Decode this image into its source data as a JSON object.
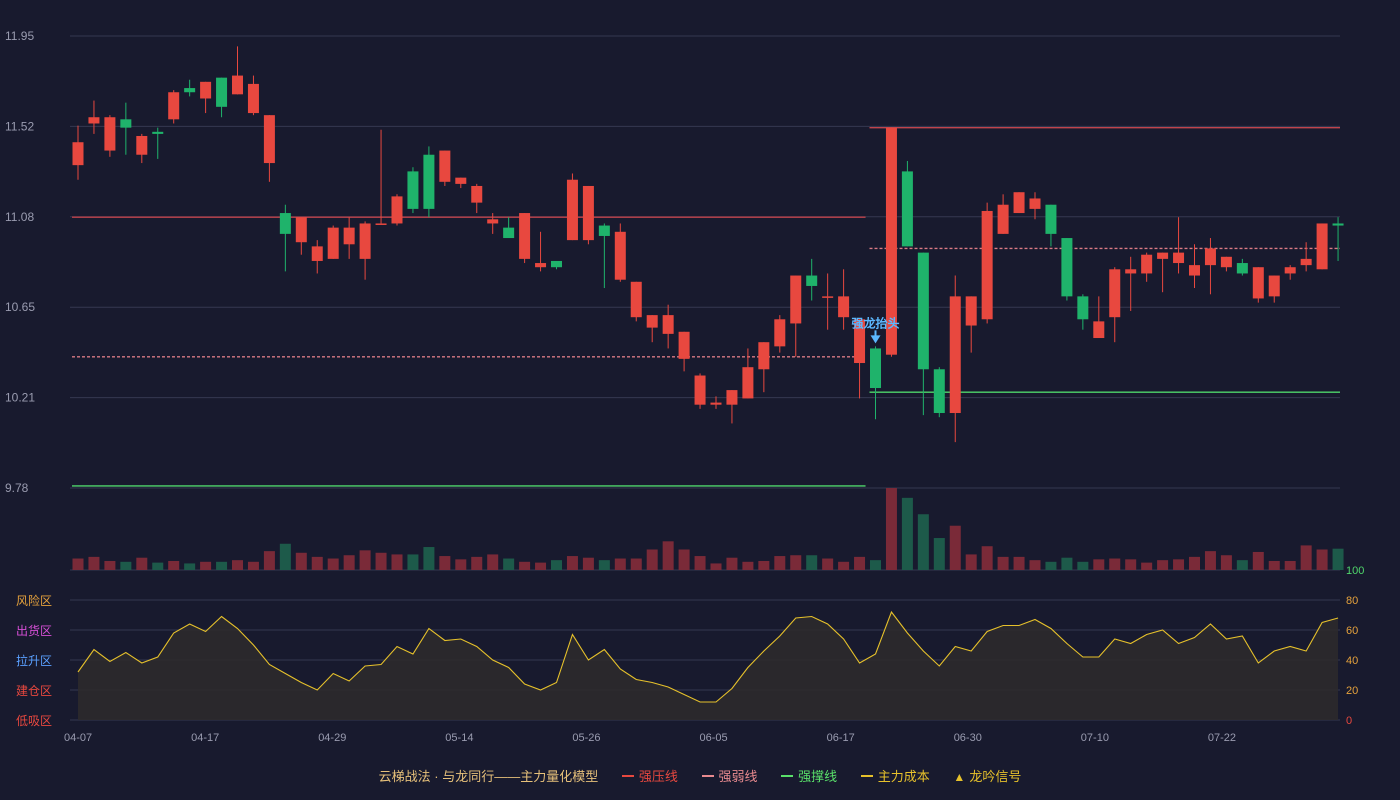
{
  "chart_data": {
    "type": "candlestick",
    "price_axis": {
      "ticks": [
        "11.95",
        "11.52",
        "11.08",
        "10.65",
        "10.21",
        "9.78"
      ],
      "ylim": [
        9.78,
        11.95
      ]
    },
    "x_tick_labels": [
      "04-07",
      "04-17",
      "04-29",
      "05-14",
      "05-26",
      "06-05",
      "06-17",
      "06-30",
      "07-10",
      "07-22"
    ],
    "candles": [
      [
        11.33,
        11.44,
        11.52,
        11.26
      ],
      [
        11.53,
        11.56,
        11.64,
        11.48
      ],
      [
        11.4,
        11.56,
        11.57,
        11.37
      ],
      [
        11.55,
        11.51,
        11.63,
        11.38
      ],
      [
        11.38,
        11.47,
        11.48,
        11.34
      ],
      [
        11.49,
        11.48,
        11.51,
        11.36
      ],
      [
        11.55,
        11.68,
        11.69,
        11.53
      ],
      [
        11.7,
        11.68,
        11.74,
        11.66
      ],
      [
        11.65,
        11.73,
        11.73,
        11.58
      ],
      [
        11.75,
        11.61,
        11.75,
        11.56
      ],
      [
        11.67,
        11.76,
        11.9,
        11.67
      ],
      [
        11.58,
        11.72,
        11.76,
        11.57
      ],
      [
        11.34,
        11.57,
        11.57,
        11.25
      ],
      [
        11.1,
        11.0,
        11.14,
        10.82
      ],
      [
        10.96,
        11.08,
        11.08,
        10.9
      ],
      [
        10.87,
        10.94,
        10.97,
        10.81
      ],
      [
        10.88,
        11.03,
        11.04,
        10.88
      ],
      [
        10.95,
        11.03,
        11.08,
        10.88
      ],
      [
        10.88,
        11.05,
        11.06,
        10.78
      ],
      [
        11.05,
        11.05,
        11.5,
        11.05
      ],
      [
        11.05,
        11.18,
        11.19,
        11.04
      ],
      [
        11.3,
        11.12,
        11.32,
        11.1
      ],
      [
        11.38,
        11.12,
        11.42,
        11.08
      ],
      [
        11.25,
        11.4,
        11.4,
        11.23
      ],
      [
        11.24,
        11.27,
        11.27,
        11.22
      ],
      [
        11.15,
        11.23,
        11.24,
        11.1
      ],
      [
        11.05,
        11.07,
        11.1,
        11.0
      ],
      [
        11.03,
        10.98,
        11.08,
        10.99
      ],
      [
        10.88,
        11.1,
        11.1,
        10.86
      ],
      [
        10.84,
        10.86,
        11.01,
        10.82
      ],
      [
        10.87,
        10.84,
        10.87,
        10.83
      ],
      [
        10.97,
        11.26,
        11.29,
        10.97
      ],
      [
        10.97,
        11.23,
        11.23,
        10.95
      ],
      [
        11.04,
        10.99,
        11.05,
        10.74
      ],
      [
        10.78,
        11.01,
        11.05,
        10.77
      ],
      [
        10.6,
        10.77,
        10.77,
        10.58
      ],
      [
        10.55,
        10.61,
        10.61,
        10.48
      ],
      [
        10.52,
        10.61,
        10.66,
        10.45
      ],
      [
        10.4,
        10.53,
        10.53,
        10.34
      ],
      [
        10.18,
        10.32,
        10.33,
        10.16
      ],
      [
        10.18,
        10.19,
        10.22,
        10.16
      ],
      [
        10.18,
        10.25,
        10.25,
        10.09
      ],
      [
        10.21,
        10.36,
        10.45,
        10.21
      ],
      [
        10.35,
        10.48,
        10.48,
        10.24
      ],
      [
        10.46,
        10.59,
        10.61,
        10.43
      ],
      [
        10.57,
        10.8,
        10.8,
        10.41
      ],
      [
        10.8,
        10.75,
        10.88,
        10.68
      ],
      [
        10.7,
        10.7,
        10.81,
        10.54
      ],
      [
        10.6,
        10.7,
        10.83,
        10.54
      ],
      [
        10.38,
        10.59,
        10.59,
        10.21
      ],
      [
        10.45,
        10.26,
        10.46,
        10.11
      ],
      [
        10.42,
        11.51,
        11.51,
        10.41
      ],
      [
        11.3,
        10.94,
        11.35,
        10.94
      ],
      [
        10.91,
        10.35,
        10.91,
        10.13
      ],
      [
        10.35,
        10.14,
        10.36,
        10.12
      ],
      [
        10.14,
        10.7,
        10.8,
        10.0
      ],
      [
        10.56,
        10.7,
        10.7,
        10.43
      ],
      [
        10.59,
        11.11,
        11.15,
        10.57
      ],
      [
        11.0,
        11.14,
        11.19,
        11.0
      ],
      [
        11.1,
        11.2,
        11.2,
        11.1
      ],
      [
        11.12,
        11.17,
        11.2,
        11.07
      ],
      [
        11.14,
        11.0,
        11.14,
        10.94
      ],
      [
        10.98,
        10.7,
        10.98,
        10.68
      ],
      [
        10.7,
        10.59,
        10.71,
        10.54
      ],
      [
        10.5,
        10.58,
        10.7,
        10.51
      ],
      [
        10.6,
        10.83,
        10.84,
        10.48
      ],
      [
        10.81,
        10.83,
        10.89,
        10.63
      ],
      [
        10.81,
        10.9,
        10.91,
        10.77
      ],
      [
        10.88,
        10.91,
        10.91,
        10.72
      ],
      [
        10.86,
        10.91,
        11.08,
        10.81
      ],
      [
        10.8,
        10.85,
        10.95,
        10.74
      ],
      [
        10.85,
        10.93,
        10.98,
        10.71
      ],
      [
        10.84,
        10.89,
        10.89,
        10.82
      ],
      [
        10.86,
        10.81,
        10.88,
        10.8
      ],
      [
        10.69,
        10.84,
        10.84,
        10.67
      ],
      [
        10.7,
        10.8,
        10.8,
        10.67
      ],
      [
        10.81,
        10.84,
        10.85,
        10.78
      ],
      [
        10.85,
        10.88,
        10.96,
        10.82
      ],
      [
        10.83,
        11.05,
        11.05,
        10.83
      ],
      [
        11.05,
        11.04,
        11.08,
        10.87
      ]
    ],
    "volume_axis": {
      "max_label": "100"
    },
    "volumes": [
      14,
      16,
      11,
      10,
      15,
      9,
      11,
      8,
      10,
      10,
      12,
      10,
      23,
      32,
      21,
      16,
      14,
      18,
      24,
      21,
      19,
      19,
      28,
      17,
      13,
      16,
      19,
      14,
      10,
      9,
      12,
      17,
      15,
      12,
      14,
      14,
      25,
      35,
      25,
      17,
      8,
      15,
      10,
      11,
      17,
      18,
      18,
      14,
      10,
      16,
      12,
      100,
      88,
      68,
      39,
      54,
      19,
      29,
      16,
      16,
      12,
      10,
      15,
      10,
      13,
      14,
      13,
      9,
      12,
      13,
      16,
      23,
      18,
      12,
      22,
      11,
      11,
      30,
      25,
      26
    ],
    "oscillator_axis": {
      "ticks": [
        "80",
        "60",
        "40",
        "20",
        "0"
      ],
      "zones": [
        "风险区",
        "出货区",
        "拉升区",
        "建仓区",
        "低吸区"
      ],
      "ylim": [
        0,
        80
      ]
    },
    "oscillator": [
      32,
      47,
      39,
      45,
      38,
      42,
      58,
      64,
      59,
      69,
      61,
      50,
      37,
      31,
      25,
      20,
      31,
      26,
      36,
      37,
      49,
      44,
      61,
      53,
      54,
      49,
      40,
      35,
      24,
      20,
      25,
      57,
      40,
      47,
      34,
      27,
      25,
      22,
      17,
      12,
      12,
      21,
      35,
      46,
      56,
      68,
      69,
      64,
      54,
      38,
      44,
      72,
      58,
      46,
      36,
      49,
      46,
      59,
      63,
      63,
      67,
      61,
      51,
      42,
      42,
      54,
      51,
      57,
      60,
      51,
      55,
      64,
      54,
      56,
      38,
      46,
      49,
      46,
      65,
      68
    ],
    "lines": [
      {
        "style": "solid",
        "color": "#c0444c",
        "value": 11.08,
        "from": 0,
        "to": 49
      },
      {
        "style": "dashed",
        "color": "#d97a84",
        "value": 10.41,
        "from": 0,
        "to": 49
      },
      {
        "style": "solid",
        "color": "#4fd66b",
        "value": 9.79,
        "from": 0,
        "to": 49
      },
      {
        "style": "solid",
        "color": "#c0444c",
        "value": 11.51,
        "from": 50,
        "to": 79
      },
      {
        "style": "dashed",
        "color": "#d97a84",
        "value": 10.93,
        "from": 50,
        "to": 79
      },
      {
        "style": "solid",
        "color": "#4fd66b",
        "value": 10.24,
        "from": 50,
        "to": 79
      }
    ],
    "annotation": {
      "text": "强龙抬头",
      "index": 50,
      "color": "#5cb8ff"
    },
    "colors": {
      "background": "#181a2e",
      "up": "#e8483f",
      "down": "#1fb36b",
      "volume_up": "#7a2a38",
      "volume_down": "#1d5a4a",
      "grid": "#353850",
      "axis_text": "#9a9cb0",
      "osc_line": "#e6c12b",
      "osc_fill": "#2c2a2c",
      "zone_risk": "#e6a23c",
      "zone_dist": "#d64fd6",
      "zone_pull": "#5aa0ff",
      "zone_build": "#e8483f",
      "zone_low": "#e8483f",
      "vol_label": "#4fd66b",
      "osc_tick": "#e6a23c",
      "osc_tick_zero": "#e8483f"
    }
  },
  "legend": {
    "title": "云梯战法 · 与龙同行——主力量化模型",
    "items": [
      {
        "label": "强压线",
        "color": "#e8483f",
        "style": "solid"
      },
      {
        "label": "强弱线",
        "color": "#e88a8f",
        "style": "dashed"
      },
      {
        "label": "强撑线",
        "color": "#59e06a",
        "style": "solid"
      },
      {
        "label": "主力成本",
        "color": "#e6c12b",
        "style": "dashed"
      },
      {
        "label": "龙吟信号",
        "color": "#e6c12b",
        "style": "triangle"
      }
    ]
  }
}
